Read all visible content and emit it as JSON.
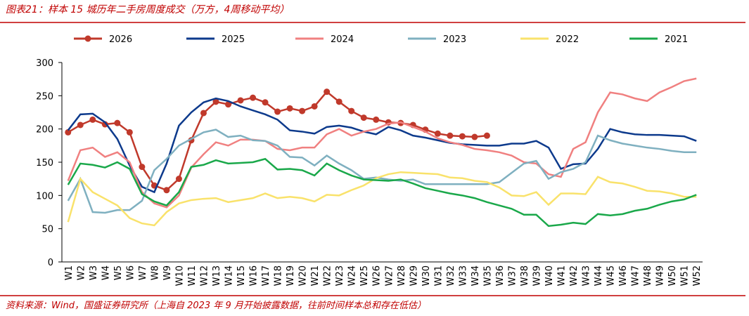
{
  "chart_data": {
    "type": "line",
    "title": "图表21：样本 15 城历年二手房周度成交（万方，4周移动平均）",
    "source": "资料来源：Wind，国盛证券研究所（上海自 2023 年 9 月开始披露数据，往前时间样本总和存在低估）",
    "categories": [
      "W1",
      "W2",
      "W3",
      "W4",
      "W5",
      "W6",
      "W7",
      "W8",
      "W9",
      "W10",
      "W11",
      "W12",
      "W13",
      "W14",
      "W15",
      "W16",
      "W17",
      "W18",
      "W19",
      "W20",
      "W21",
      "W22",
      "W23",
      "W24",
      "W25",
      "W26",
      "W27",
      "W28",
      "W29",
      "W30",
      "W31",
      "W32",
      "W33",
      "W34",
      "W35",
      "W36",
      "W37",
      "W38",
      "W39",
      "W40",
      "W41",
      "W42",
      "W43",
      "W44",
      "W45",
      "W46",
      "W47",
      "W48",
      "W49",
      "W50",
      "W51",
      "W52"
    ],
    "ylim": [
      0,
      300
    ],
    "yticks": [
      0,
      50,
      100,
      150,
      200,
      250,
      300
    ],
    "series": [
      {
        "name": "2026",
        "color": "#c0392b",
        "markers": true,
        "values": [
          195,
          206,
          214,
          207,
          209,
          195,
          143,
          115,
          108,
          125,
          183,
          224,
          241,
          237,
          243,
          247,
          240,
          226,
          231,
          227,
          234,
          256,
          241,
          227,
          217,
          214,
          210,
          209,
          206,
          199,
          193,
          190,
          189,
          188,
          190,
          null,
          null,
          null,
          null,
          null,
          null,
          null,
          null,
          null,
          null,
          null,
          null,
          null,
          null,
          null,
          null,
          null
        ]
      },
      {
        "name": "2025",
        "color": "#0d3a8c",
        "values": [
          198,
          222,
          223,
          210,
          185,
          145,
          113,
          105,
          148,
          205,
          225,
          240,
          246,
          242,
          234,
          228,
          222,
          214,
          198,
          196,
          193,
          203,
          205,
          202,
          196,
          192,
          203,
          198,
          190,
          187,
          183,
          179,
          177,
          176,
          175,
          175,
          178,
          178,
          182,
          172,
          140,
          147,
          148,
          170,
          200,
          195,
          192,
          191,
          191,
          190,
          189,
          182
        ]
      },
      {
        "name": "2024",
        "color": "#f08080",
        "values": [
          122,
          168,
          172,
          158,
          165,
          150,
          105,
          88,
          82,
          100,
          142,
          162,
          180,
          175,
          184,
          184,
          182,
          170,
          168,
          172,
          172,
          192,
          200,
          190,
          196,
          200,
          208,
          210,
          203,
          196,
          186,
          180,
          176,
          170,
          168,
          165,
          160,
          150,
          148,
          132,
          128,
          170,
          180,
          225,
          255,
          252,
          246,
          242,
          255,
          263,
          272,
          276
        ]
      },
      {
        "name": "2023",
        "color": "#7fb0c0",
        "values": [
          92,
          125,
          75,
          74,
          78,
          78,
          92,
          138,
          155,
          175,
          185,
          195,
          199,
          188,
          190,
          183,
          182,
          175,
          158,
          157,
          145,
          160,
          148,
          138,
          125,
          127,
          124,
          122,
          124,
          117,
          117,
          117,
          117,
          117,
          117,
          120,
          134,
          148,
          152,
          125,
          135,
          140,
          150,
          190,
          183,
          178,
          175,
          172,
          170,
          167,
          165,
          165
        ]
      },
      {
        "name": "2022",
        "color": "#f9e26b",
        "values": [
          60,
          125,
          105,
          95,
          85,
          66,
          58,
          55,
          75,
          88,
          93,
          95,
          96,
          90,
          93,
          96,
          103,
          96,
          98,
          96,
          91,
          101,
          100,
          108,
          115,
          126,
          132,
          135,
          134,
          133,
          132,
          127,
          126,
          122,
          120,
          112,
          100,
          99,
          105,
          86,
          103,
          103,
          102,
          128,
          120,
          118,
          113,
          107,
          106,
          103,
          98,
          98
        ]
      },
      {
        "name": "2021",
        "color": "#1aa84a",
        "values": [
          116,
          148,
          146,
          142,
          150,
          140,
          102,
          91,
          85,
          105,
          143,
          146,
          153,
          148,
          149,
          150,
          155,
          139,
          140,
          138,
          130,
          148,
          138,
          130,
          124,
          123,
          122,
          124,
          118,
          111,
          107,
          103,
          100,
          96,
          90,
          85,
          80,
          71,
          71,
          54,
          56,
          59,
          57,
          72,
          70,
          72,
          77,
          80,
          86,
          91,
          94,
          101
        ]
      }
    ]
  }
}
